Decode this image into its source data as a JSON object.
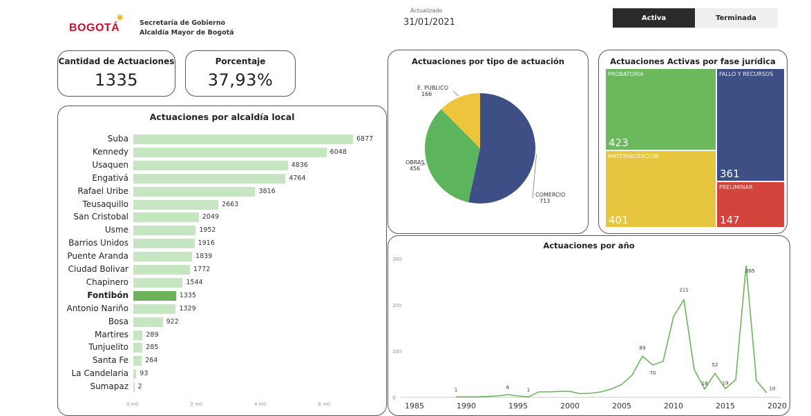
{
  "header": {
    "logo_text": "BOGOTÁ",
    "org_line1": "Secretaría de Gobierno",
    "org_line2": "Alcaldía Mayor de Bogotá",
    "updated_label": "Actualizado",
    "updated_date": "31/01/2021"
  },
  "toggle": {
    "active_label": "Activa",
    "ended_label": "Terminada",
    "selected": "Activa"
  },
  "kpis": {
    "count_title": "Cantidad de Actuaciones",
    "count_value": "1335",
    "pct_title": "Porcentaje",
    "pct_value": "37,93%"
  },
  "colors": {
    "bar": "#c6e5c1",
    "bar_highlight": "#6cb35c",
    "pie_comercio": "#3e4f86",
    "pie_obras": "#5cb55c",
    "pie_publico": "#ecc53c",
    "tm_probatoria": "#6cb85c",
    "tm_fallo": "#3e4f86",
    "tm_materializacion": "#e8c53e",
    "tm_preliminar": "#d2433b",
    "line": "#6cb35c"
  },
  "chart_data": [
    {
      "type": "bar",
      "title": "Actuaciones por alcaldía local",
      "categories": [
        "Suba",
        "Kennedy",
        "Usaquen",
        "Engativá",
        "Rafael Uribe",
        "Teusaquillo",
        "San Cristobal",
        "Usme",
        "Barrios Unidos",
        "Puente Aranda",
        "Ciudad Bolivar",
        "Chapinero",
        "Fontibón",
        "Antonio Nariño",
        "Bosa",
        "Martires",
        "Tunjuelito",
        "Santa Fe",
        "La Candelaria",
        "Sumapaz"
      ],
      "values": [
        6877,
        6048,
        4836,
        4764,
        3816,
        2663,
        2049,
        1952,
        1916,
        1839,
        1772,
        1544,
        1335,
        1329,
        922,
        289,
        285,
        264,
        93,
        2
      ],
      "value_labels": [
        "6877",
        "6048",
        "4836",
        "4764",
        "3816",
        "2663",
        "2049",
        "1952",
        "1916",
        "1839",
        "1772",
        "1544",
        "1335",
        "1329",
        "922",
        "289",
        "285",
        "264",
        "93",
        "2"
      ],
      "highlight": "Fontibón",
      "xticks": [
        "0 mil",
        "2 mil",
        "4 mil",
        "6 mil"
      ],
      "xlim": [
        0,
        7000
      ]
    },
    {
      "type": "pie",
      "title": "Actuaciones por tipo de actuación",
      "slices": [
        {
          "label": "COMERCIO",
          "value": 713
        },
        {
          "label": "OBRAS",
          "value": 456
        },
        {
          "label": "E. PUBLICO",
          "value": 166
        }
      ]
    },
    {
      "type": "treemap",
      "title": "Actuaciones Activas por fase jurídica",
      "items": [
        {
          "label": "PROBATORIA",
          "value": 423
        },
        {
          "label": "FALLO Y RECURSOS",
          "value": 361
        },
        {
          "label": "MATERIALIZACION",
          "value": 401
        },
        {
          "label": "PRELIMINAR",
          "value": 147
        }
      ]
    },
    {
      "type": "line",
      "title": "Actuaciones por año",
      "x": [
        1989,
        1990,
        1991,
        1992,
        1993,
        1994,
        1995,
        1996,
        1997,
        1998,
        1999,
        2000,
        2001,
        2002,
        2003,
        2004,
        2005,
        2006,
        2007,
        2008,
        2009,
        2010,
        2011,
        2012,
        2013,
        2014,
        2015,
        2016,
        2017,
        2018,
        2019
      ],
      "y": [
        1,
        1,
        1,
        2,
        3,
        6,
        3,
        1,
        12,
        12,
        13,
        13,
        8,
        9,
        12,
        18,
        28,
        48,
        89,
        70,
        78,
        175,
        211,
        60,
        18,
        52,
        19,
        38,
        285,
        36,
        10
      ],
      "point_labels": [
        {
          "x": 1989,
          "label": "1"
        },
        {
          "x": 1994,
          "label": "6"
        },
        {
          "x": 1996,
          "label": "1"
        },
        {
          "x": 2007,
          "label": "89"
        },
        {
          "x": 2008,
          "label": "70"
        },
        {
          "x": 2011,
          "label": "211"
        },
        {
          "x": 2013,
          "label": "18"
        },
        {
          "x": 2014,
          "label": "52"
        },
        {
          "x": 2015,
          "label": "19"
        },
        {
          "x": 2017,
          "label": "285"
        },
        {
          "x": 2019,
          "label": "10"
        }
      ],
      "xticks": [
        "1985",
        "1990",
        "1995",
        "2000",
        "2005",
        "2010",
        "2015",
        "2020"
      ],
      "yticks": [
        "0",
        "100",
        "200",
        "300"
      ],
      "xlim": [
        1985,
        2020
      ],
      "ylim": [
        0,
        300
      ],
      "grid": false
    }
  ]
}
